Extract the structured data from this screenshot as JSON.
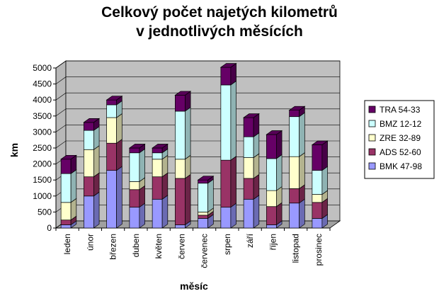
{
  "chart_data": {
    "type": "bar",
    "stacked": true,
    "three_d": true,
    "title_lines": [
      "Celkový počet najetých kilometrů",
      "v jednotlivých měsících"
    ],
    "xlabel": "měsíc",
    "ylabel": "km",
    "ylim": [
      0,
      5000
    ],
    "yticks": [
      0,
      500,
      1000,
      1500,
      2000,
      2500,
      3000,
      3500,
      4000,
      4500,
      5000
    ],
    "grid": true,
    "legend_position": "right",
    "categories": [
      "leden",
      "únor",
      "březen",
      "duben",
      "květen",
      "červen",
      "červenec",
      "srpen",
      "září",
      "říjen",
      "listopad",
      "prosinec"
    ],
    "series": [
      {
        "name": "BMK 47-98",
        "color": "#9999ff",
        "values": [
          100,
          1000,
          1800,
          650,
          900,
          100,
          300,
          650,
          900,
          100,
          780,
          300
        ]
      },
      {
        "name": "ADS 52-60",
        "color": "#993366",
        "values": [
          150,
          600,
          850,
          550,
          700,
          1450,
          100,
          1470,
          650,
          570,
          450,
          500
        ]
      },
      {
        "name": "ZRE 32-89",
        "color": "#ffffcc",
        "values": [
          550,
          850,
          800,
          250,
          550,
          600,
          100,
          0,
          650,
          500,
          1000,
          250
        ]
      },
      {
        "name": "BMZ 12-12",
        "color": "#ccffff",
        "values": [
          900,
          600,
          400,
          900,
          200,
          1500,
          900,
          2350,
          650,
          1000,
          1250,
          750
        ]
      },
      {
        "name": "TRA 54-33",
        "color": "#660066",
        "values": [
          450,
          250,
          150,
          150,
          150,
          500,
          100,
          550,
          600,
          750,
          200,
          800
        ]
      }
    ]
  }
}
